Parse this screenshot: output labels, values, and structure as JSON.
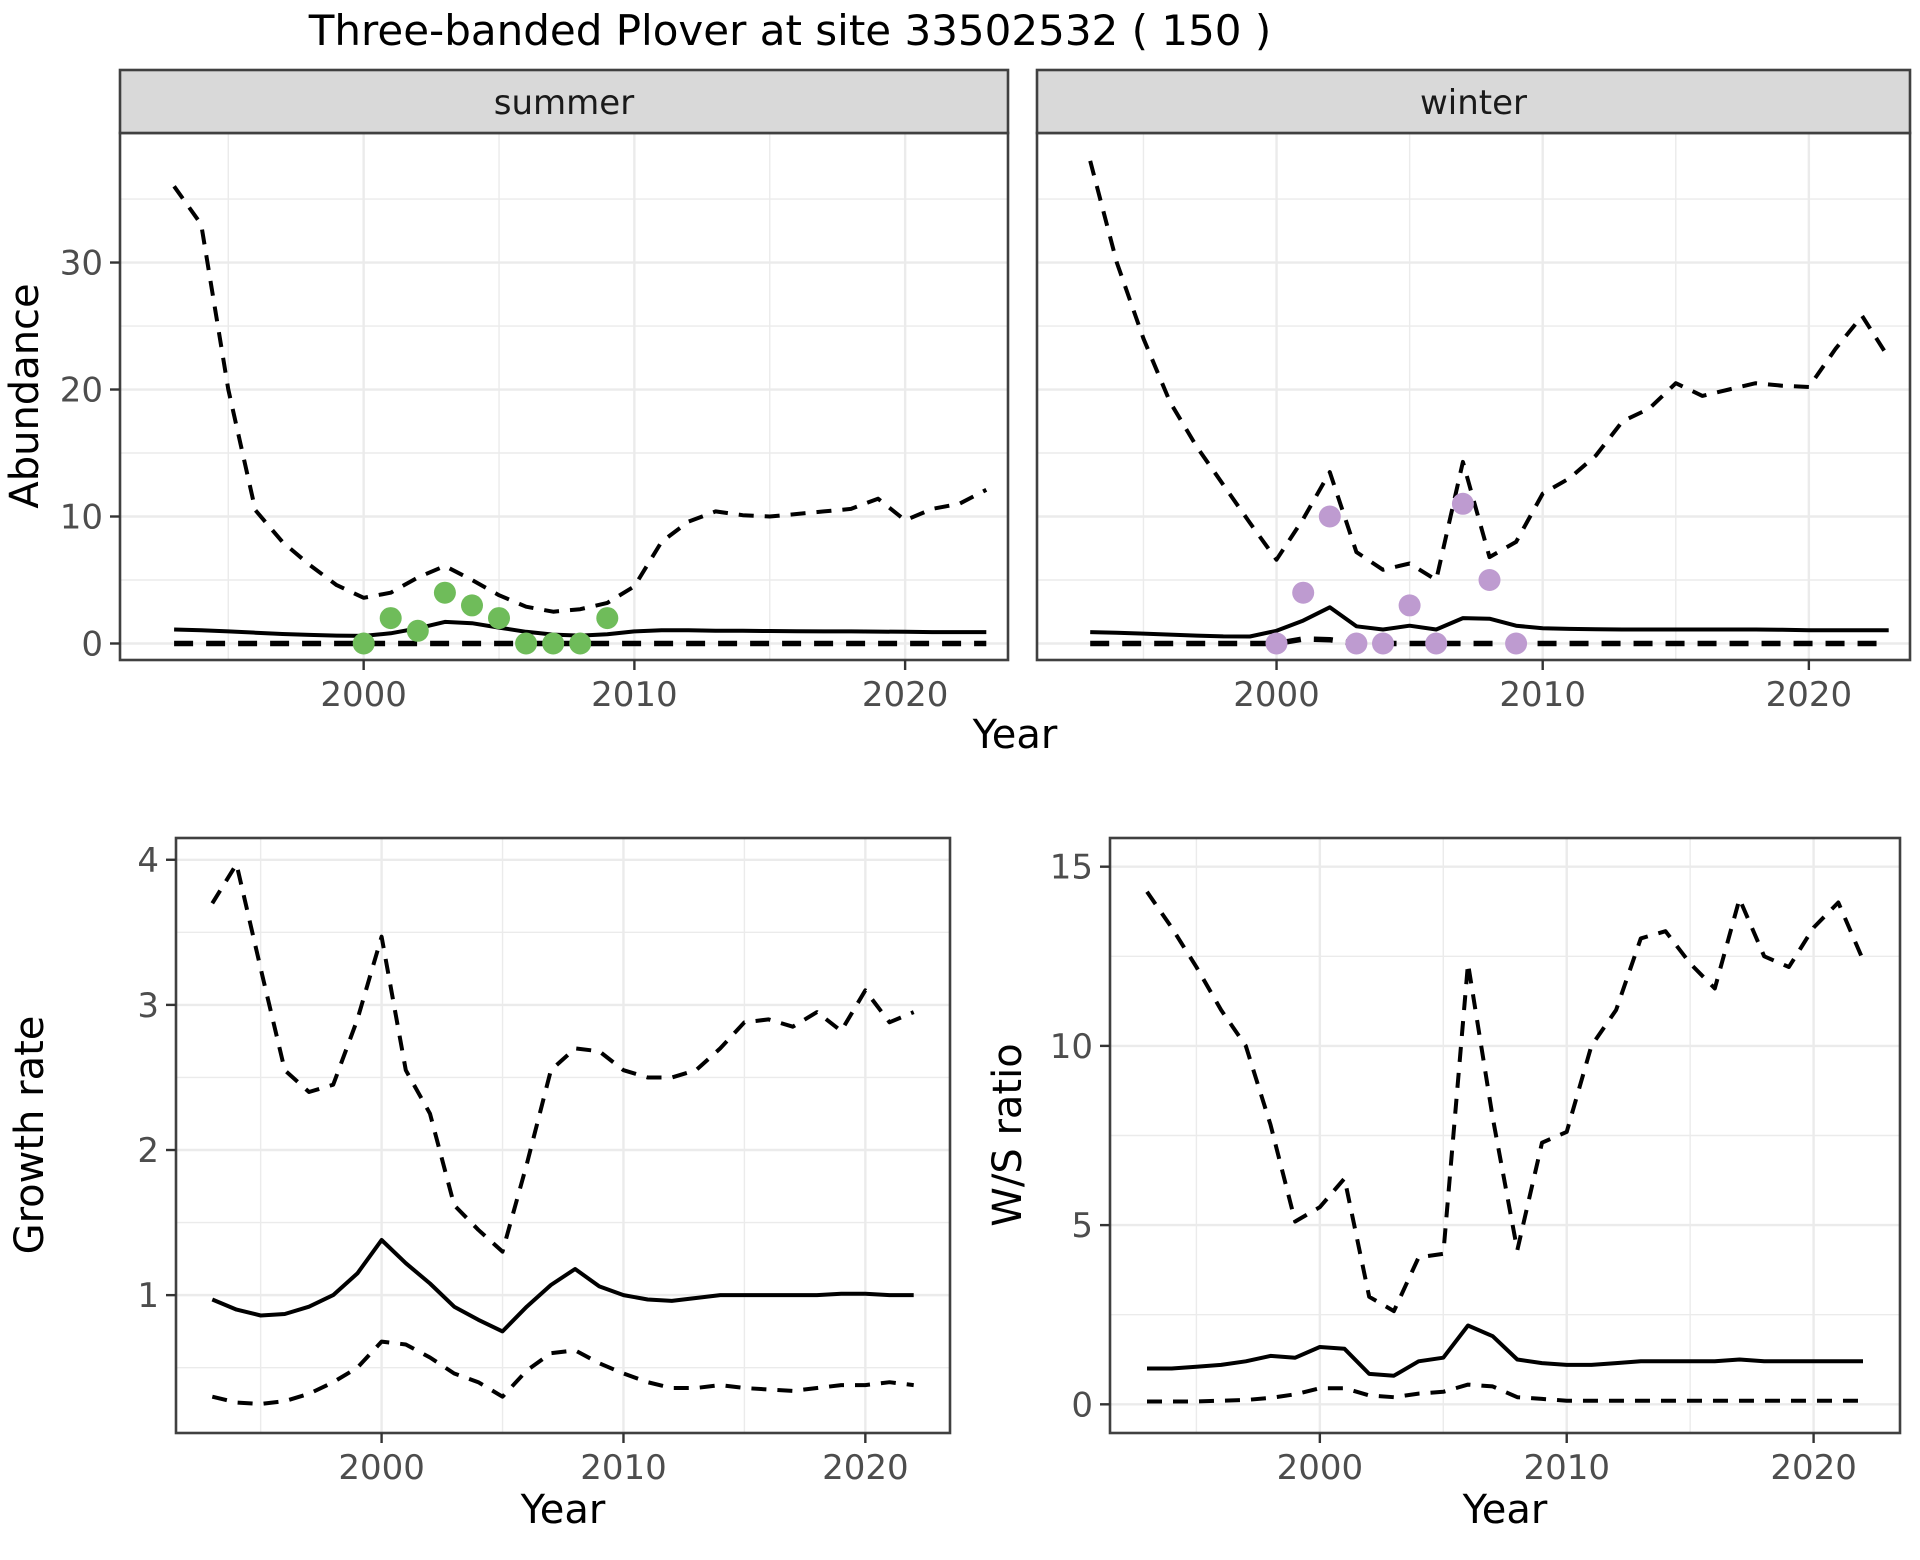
{
  "title": "Three-banded Plover at site 33502532 ( 150 )",
  "colors": {
    "summer_points": "#6FBC5A",
    "winter_points": "#BE9BD0",
    "line": "#000000",
    "strip_background": "#d9d9d9",
    "gridline": "#ebebeb",
    "tick_label": "#4d4d4d"
  },
  "top_row": {
    "y_label": "Abundance",
    "x_label": "Year",
    "facets": [
      "summer",
      "winter"
    ]
  },
  "bottom_row": {
    "left_y_label": "Growth rate",
    "right_y_label": "W/S ratio",
    "left_x_label": "Year",
    "right_x_label": "Year"
  },
  "chart_data": [
    {
      "id": "abundance-summer",
      "type": "line",
      "facet_label": "summer",
      "ylabel": "Abundance",
      "xlabel": "Year",
      "x_range": [
        1991.0,
        2023.8
      ],
      "y_range": [
        -1.3,
        40.2
      ],
      "x_ticks": [
        2000,
        2010,
        2020
      ],
      "x_minor": [
        1995,
        2005,
        2015
      ],
      "y_ticks": [
        0,
        10,
        20,
        30
      ],
      "y_minor": [
        5,
        15,
        25,
        35
      ],
      "years": [
        1993,
        1994,
        1995,
        1996,
        1997,
        1998,
        1999,
        2000,
        2001,
        2002,
        2003,
        2004,
        2005,
        2006,
        2007,
        2008,
        2009,
        2010,
        2011,
        2012,
        2013,
        2014,
        2015,
        2016,
        2017,
        2018,
        2019,
        2020,
        2021,
        2022,
        2023
      ],
      "series": [
        {
          "name": "median",
          "style": "solid",
          "values": [
            1.1,
            1.05,
            0.95,
            0.85,
            0.75,
            0.68,
            0.62,
            0.6,
            0.8,
            1.2,
            1.7,
            1.6,
            1.25,
            0.92,
            0.7,
            0.62,
            0.72,
            0.95,
            1.05,
            1.05,
            1.0,
            1.0,
            0.98,
            0.96,
            0.95,
            0.95,
            0.94,
            0.92,
            0.9,
            0.9,
            0.9
          ]
        },
        {
          "name": "upper_ci",
          "style": "dashed",
          "values": [
            36,
            33,
            20,
            10.5,
            8.0,
            6.2,
            4.6,
            3.6,
            4.0,
            5.2,
            6.1,
            5.0,
            3.8,
            2.9,
            2.5,
            2.7,
            3.2,
            4.5,
            8.0,
            9.6,
            10.4,
            10.1,
            10.0,
            10.2,
            10.4,
            10.6,
            11.4,
            9.7,
            10.6,
            11.0,
            12.1
          ]
        },
        {
          "name": "lower_ci",
          "style": "dashed-thick",
          "values": [
            0,
            0,
            0,
            0,
            0,
            0,
            0,
            0,
            0,
            0,
            0,
            0,
            0,
            0,
            0,
            0,
            0,
            0,
            0,
            0,
            0,
            0,
            0,
            0,
            0,
            0,
            0,
            0,
            0,
            0,
            0
          ]
        }
      ],
      "points": {
        "name": "observed_counts_summer",
        "color": "#6FBC5A",
        "years": [
          2000,
          2001,
          2002,
          2003,
          2004,
          2005,
          2006,
          2007,
          2008,
          2009
        ],
        "values": [
          0,
          2,
          1,
          4,
          3,
          2,
          0,
          0,
          0,
          2
        ]
      }
    },
    {
      "id": "abundance-winter",
      "type": "line",
      "facet_label": "winter",
      "ylabel": "Abundance",
      "xlabel": "Year",
      "x_range": [
        1991.0,
        2023.8
      ],
      "y_range": [
        -1.3,
        40.2
      ],
      "x_ticks": [
        2000,
        2010,
        2020
      ],
      "x_minor": [
        1995,
        2005,
        2015
      ],
      "y_ticks": [
        0,
        10,
        20,
        30
      ],
      "y_minor": [
        5,
        15,
        25,
        35
      ],
      "years": [
        1993,
        1994,
        1995,
        1996,
        1997,
        1998,
        1999,
        2000,
        2001,
        2002,
        2003,
        2004,
        2005,
        2006,
        2007,
        2008,
        2009,
        2010,
        2011,
        2012,
        2013,
        2014,
        2015,
        2016,
        2017,
        2018,
        2019,
        2020,
        2021,
        2022,
        2023
      ],
      "series": [
        {
          "name": "median",
          "style": "solid",
          "values": [
            0.9,
            0.85,
            0.78,
            0.7,
            0.62,
            0.56,
            0.55,
            1.0,
            1.8,
            2.85,
            1.35,
            1.1,
            1.4,
            1.1,
            2.0,
            1.95,
            1.4,
            1.2,
            1.15,
            1.12,
            1.1,
            1.1,
            1.1,
            1.1,
            1.1,
            1.1,
            1.08,
            1.05,
            1.05,
            1.05,
            1.05
          ]
        },
        {
          "name": "upper_ci",
          "style": "dashed",
          "values": [
            38,
            30,
            24,
            19,
            15.5,
            12.5,
            9.5,
            6.6,
            9.8,
            13.5,
            7.2,
            5.8,
            6.3,
            5.0,
            14.3,
            6.8,
            8.0,
            11.8,
            13.0,
            14.8,
            17.5,
            18.5,
            20.5,
            19.5,
            20.0,
            20.5,
            20.3,
            20.2,
            23.2,
            25.8,
            22.5
          ]
        },
        {
          "name": "lower_ci",
          "style": "dashed-thick",
          "values": [
            0,
            0,
            0,
            0,
            0,
            0,
            0,
            0,
            0.35,
            0.3,
            0,
            0,
            0,
            0,
            0,
            0,
            0,
            0,
            0,
            0,
            0,
            0,
            0,
            0,
            0,
            0,
            0,
            0,
            0,
            0,
            0
          ]
        }
      ],
      "points": {
        "name": "observed_counts_winter",
        "color": "#BE9BD0",
        "years": [
          2000,
          2001,
          2002,
          2003,
          2004,
          2005,
          2006,
          2007,
          2008,
          2009
        ],
        "values": [
          0,
          4,
          10,
          0,
          0,
          3,
          0,
          11,
          5,
          0
        ]
      }
    },
    {
      "id": "growth-rate",
      "type": "line",
      "facet_label": "",
      "ylabel": "Growth rate",
      "xlabel": "Year",
      "x_range": [
        1991.5,
        2023.5
      ],
      "y_range": [
        0.05,
        4.15
      ],
      "x_ticks": [
        2000,
        2010,
        2020
      ],
      "x_minor": [
        1995,
        2005,
        2015
      ],
      "y_ticks": [
        1,
        2,
        3,
        4
      ],
      "y_minor": [
        0.5,
        1.5,
        2.5,
        3.5
      ],
      "years": [
        1993,
        1994,
        1995,
        1996,
        1997,
        1998,
        1999,
        2000,
        2001,
        2002,
        2003,
        2004,
        2005,
        2006,
        2007,
        2008,
        2009,
        2010,
        2011,
        2012,
        2013,
        2014,
        2015,
        2016,
        2017,
        2018,
        2019,
        2020,
        2021,
        2022
      ],
      "series": [
        {
          "name": "median",
          "style": "solid",
          "values": [
            0.97,
            0.9,
            0.86,
            0.87,
            0.92,
            1.0,
            1.15,
            1.38,
            1.22,
            1.08,
            0.92,
            0.83,
            0.75,
            0.92,
            1.07,
            1.18,
            1.06,
            1.0,
            0.97,
            0.96,
            0.98,
            1.0,
            1.0,
            1.0,
            1.0,
            1.0,
            1.01,
            1.01,
            1.0,
            1.0
          ]
        },
        {
          "name": "upper_ci",
          "style": "dashed",
          "values": [
            3.7,
            3.97,
            3.25,
            2.55,
            2.4,
            2.45,
            2.9,
            3.47,
            2.55,
            2.25,
            1.62,
            1.45,
            1.3,
            1.9,
            2.55,
            2.7,
            2.68,
            2.55,
            2.5,
            2.5,
            2.55,
            2.7,
            2.88,
            2.9,
            2.85,
            2.95,
            2.82,
            3.1,
            2.88,
            2.95
          ]
        },
        {
          "name": "lower_ci",
          "style": "dashed",
          "values": [
            0.3,
            0.26,
            0.25,
            0.27,
            0.32,
            0.4,
            0.5,
            0.68,
            0.66,
            0.57,
            0.46,
            0.4,
            0.3,
            0.48,
            0.6,
            0.62,
            0.53,
            0.46,
            0.4,
            0.36,
            0.36,
            0.38,
            0.36,
            0.35,
            0.34,
            0.36,
            0.38,
            0.38,
            0.4,
            0.38
          ]
        }
      ],
      "points": null
    },
    {
      "id": "ws-ratio",
      "type": "line",
      "facet_label": "",
      "ylabel": "W/S ratio",
      "xlabel": "Year",
      "x_range": [
        1991.5,
        2023.5
      ],
      "y_range": [
        -0.8,
        15.8
      ],
      "x_ticks": [
        2000,
        2010,
        2020
      ],
      "x_minor": [
        1995,
        2005,
        2015
      ],
      "y_ticks": [
        0,
        5,
        10,
        15
      ],
      "y_minor": [
        2.5,
        7.5,
        12.5
      ],
      "years": [
        1993,
        1994,
        1995,
        1996,
        1997,
        1998,
        1999,
        2000,
        2001,
        2002,
        2003,
        2004,
        2005,
        2006,
        2007,
        2008,
        2009,
        2010,
        2011,
        2012,
        2013,
        2014,
        2015,
        2016,
        2017,
        2018,
        2019,
        2020,
        2021,
        2022
      ],
      "series": [
        {
          "name": "median",
          "style": "solid",
          "values": [
            1.0,
            1.0,
            1.05,
            1.1,
            1.2,
            1.35,
            1.3,
            1.6,
            1.55,
            0.85,
            0.8,
            1.2,
            1.3,
            2.2,
            1.9,
            1.25,
            1.15,
            1.1,
            1.1,
            1.15,
            1.2,
            1.2,
            1.2,
            1.2,
            1.25,
            1.2,
            1.2,
            1.2,
            1.2,
            1.2
          ]
        },
        {
          "name": "upper_ci",
          "style": "dashed",
          "values": [
            14.3,
            13.3,
            12.2,
            11.0,
            10.0,
            7.8,
            5.1,
            5.5,
            6.3,
            3.0,
            2.6,
            4.1,
            4.2,
            12.3,
            8.0,
            4.3,
            7.3,
            7.6,
            10.0,
            11.0,
            13.0,
            13.2,
            12.3,
            11.6,
            14.1,
            12.5,
            12.2,
            13.3,
            14.0,
            12.4
          ]
        },
        {
          "name": "lower_ci",
          "style": "dashed",
          "values": [
            0.08,
            0.08,
            0.08,
            0.1,
            0.12,
            0.18,
            0.28,
            0.45,
            0.45,
            0.25,
            0.2,
            0.3,
            0.35,
            0.55,
            0.5,
            0.2,
            0.15,
            0.1,
            0.1,
            0.1,
            0.1,
            0.1,
            0.1,
            0.1,
            0.1,
            0.1,
            0.1,
            0.1,
            0.1,
            0.1
          ]
        }
      ],
      "points": null
    }
  ]
}
